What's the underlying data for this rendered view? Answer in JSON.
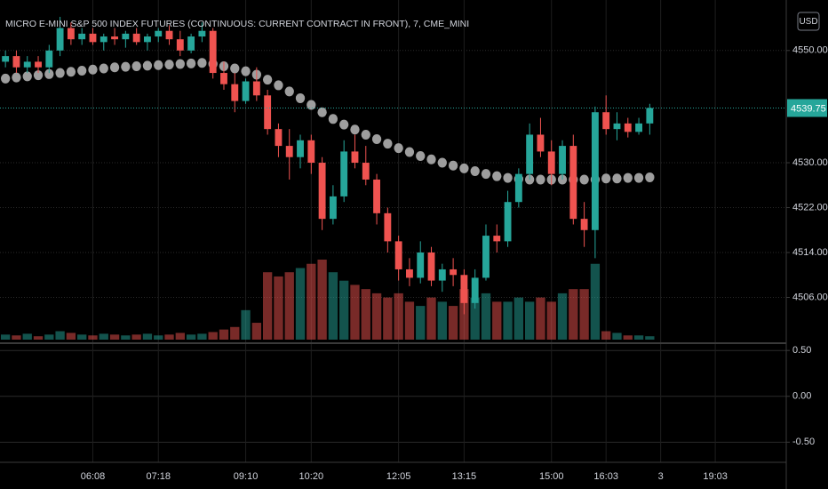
{
  "chart_data": {
    "type": "candlestick",
    "title": "MICRO E-MINI S&P 500 INDEX FUTURES (CONTINUOUS: CURRENT CONTRACT IN FRONT), 7, CME_MINI",
    "currency": "USD",
    "last_price": 4539.75,
    "up_color": "#26a69a",
    "down_color": "#ef5350",
    "ma_color": "#9e9e9e",
    "grid": true,
    "categories": [
      null,
      null,
      null,
      null,
      null,
      null,
      null,
      null,
      "06:08",
      null,
      null,
      null,
      null,
      null,
      "07:18",
      null,
      null,
      null,
      null,
      null,
      null,
      null,
      "09:10",
      null,
      null,
      null,
      null,
      null,
      "10:20",
      null,
      null,
      null,
      null,
      null,
      null,
      null,
      "12:05",
      null,
      null,
      null,
      null,
      null,
      "13:15",
      null,
      null,
      null,
      null,
      null,
      null,
      null,
      "15:00",
      null,
      null,
      null,
      null,
      "16:03",
      null,
      null,
      null,
      null,
      "3",
      null,
      null,
      null,
      null,
      "19:03",
      null,
      null,
      null,
      null,
      null,
      null
    ],
    "open": [
      4548,
      4549,
      4547,
      4548,
      4547,
      4550,
      4554,
      4552,
      4553,
      4551.5,
      4552.5,
      4552,
      4553,
      4551.5,
      4552.5,
      4553.5,
      4552,
      4550,
      4552.5,
      4553.5,
      4546,
      4544,
      4541,
      4544.5,
      4542,
      4536,
      4533,
      4531,
      4534,
      4530,
      4520,
      4524,
      4532,
      4530,
      4527,
      4521,
      4516,
      4511,
      4509.5,
      4514,
      4509,
      4511,
      4510,
      4505,
      4509.5,
      4517,
      4516,
      4523,
      4528,
      4535,
      4532,
      4528,
      4533,
      4520,
      4518,
      4539,
      4536,
      4537,
      4535.5,
      4537,
      null,
      null,
      null,
      null,
      null,
      null,
      null,
      null,
      null,
      null,
      null,
      null
    ],
    "high": [
      4550,
      4550,
      4549,
      4549,
      4551,
      4556,
      4555,
      4554,
      4554,
      4553,
      4554,
      4553.5,
      4554,
      4553,
      4554,
      4554.5,
      4553.5,
      4553,
      4555,
      4554,
      4548,
      4546,
      4545,
      4547,
      4543,
      4537,
      4536,
      4535,
      4535,
      4531,
      4526,
      4534,
      4535,
      4533,
      4528,
      4522,
      4517,
      4513,
      4516,
      4515,
      4512,
      4513,
      4511,
      4511,
      4519,
      4519,
      4525,
      4529,
      4537,
      4538,
      4534,
      4534,
      4535,
      4523,
      4540,
      4542,
      4539,
      4538,
      4538,
      4540.5,
      null,
      null,
      null,
      null,
      null,
      null,
      null,
      null,
      null,
      null,
      null,
      null
    ],
    "low": [
      4547,
      4546,
      4546,
      4546,
      4546,
      4549,
      4551,
      4551,
      4551,
      4550,
      4551,
      4550.5,
      4551,
      4550,
      4551.5,
      4551,
      4549,
      4549.5,
      4551.5,
      4545,
      4543,
      4539,
      4540.5,
      4541,
      4535,
      4531,
      4527,
      4529,
      4528,
      4518,
      4519,
      4523,
      4529,
      4526,
      4519,
      4514,
      4509,
      4508,
      4508.5,
      4508,
      4507,
      4508,
      4503,
      4504,
      4509,
      4514,
      4515,
      4522,
      4527,
      4531,
      4526,
      4527,
      4519,
      4515,
      4513,
      4535,
      4534,
      4534.5,
      4535,
      4535,
      null,
      null,
      null,
      null,
      null,
      null,
      null,
      null,
      null,
      null,
      null,
      null
    ],
    "close": [
      4549,
      4547,
      4548,
      4547,
      4550,
      4554,
      4552,
      4553,
      4551.5,
      4552.5,
      4552,
      4553,
      4551.5,
      4552.5,
      4553.5,
      4552,
      4550,
      4552.5,
      4553.5,
      4546,
      4544,
      4541,
      4544.5,
      4542,
      4536,
      4533,
      4531,
      4534,
      4530,
      4520,
      4524,
      4532,
      4530,
      4527,
      4521,
      4516,
      4511,
      4509.5,
      4514,
      4509,
      4511,
      4510,
      4505,
      4509.5,
      4517,
      4516,
      4523,
      4528,
      4535,
      4532,
      4528,
      4533,
      4520,
      4518,
      4539,
      4536,
      4537,
      4535.5,
      4537,
      4539.75,
      null,
      null,
      null,
      null,
      null,
      null,
      null,
      null,
      null,
      null,
      null,
      null
    ],
    "volume": [
      6,
      5,
      7,
      4,
      6,
      10,
      8,
      6,
      5,
      7,
      6,
      5,
      6,
      7,
      5,
      6,
      8,
      6,
      7,
      9,
      12,
      15,
      35,
      20,
      80,
      75,
      80,
      85,
      90,
      95,
      80,
      70,
      65,
      60,
      55,
      50,
      55,
      45,
      40,
      50,
      45,
      40,
      60,
      50,
      55,
      45,
      45,
      50,
      45,
      50,
      45,
      55,
      60,
      60,
      90,
      10,
      8,
      5,
      5,
      4,
      null,
      null,
      null,
      null,
      null,
      null,
      null,
      null,
      null,
      null,
      null,
      null
    ],
    "ma": [
      4545,
      4545.2,
      4545.4,
      4545.6,
      4545.8,
      4546,
      4546.2,
      4546.4,
      4546.6,
      4546.8,
      4547,
      4547.1,
      4547.2,
      4547.3,
      4547.4,
      4547.5,
      4547.6,
      4547.7,
      4547.8,
      4547.6,
      4547.2,
      4546.8,
      4546.3,
      4545.7,
      4544.8,
      4543.8,
      4542.7,
      4541.5,
      4540.3,
      4539,
      4537.8,
      4536.8,
      4535.9,
      4535,
      4534.2,
      4533.4,
      4532.6,
      4531.9,
      4531.2,
      4530.6,
      4530,
      4529.5,
      4529,
      4528.5,
      4528,
      4527.6,
      4527.3,
      4527.1,
      4527,
      4527,
      4527,
      4527,
      4527,
      4527,
      4527,
      4527.2,
      4527.2,
      4527.3,
      4527.3,
      4527.4,
      null,
      null,
      null,
      null,
      null,
      null,
      null,
      null,
      null,
      null,
      null,
      null
    ],
    "ylim": [
      4498,
      4559
    ],
    "yticks": [
      {
        "value": 4506,
        "label": "4506.00"
      },
      {
        "value": 4514,
        "label": "4514.00"
      },
      {
        "value": 4522,
        "label": "4522.00"
      },
      {
        "value": 4530,
        "label": "4530.00"
      },
      {
        "value": 4550,
        "label": "4550.00"
      }
    ],
    "pane2": {
      "ylim": [
        -0.72,
        0.56
      ],
      "yticks": [
        {
          "value": 0.5,
          "label": "0.50"
        },
        {
          "value": 0,
          "label": "0.00"
        },
        {
          "value": -0.5,
          "label": "-0.50"
        }
      ]
    }
  }
}
